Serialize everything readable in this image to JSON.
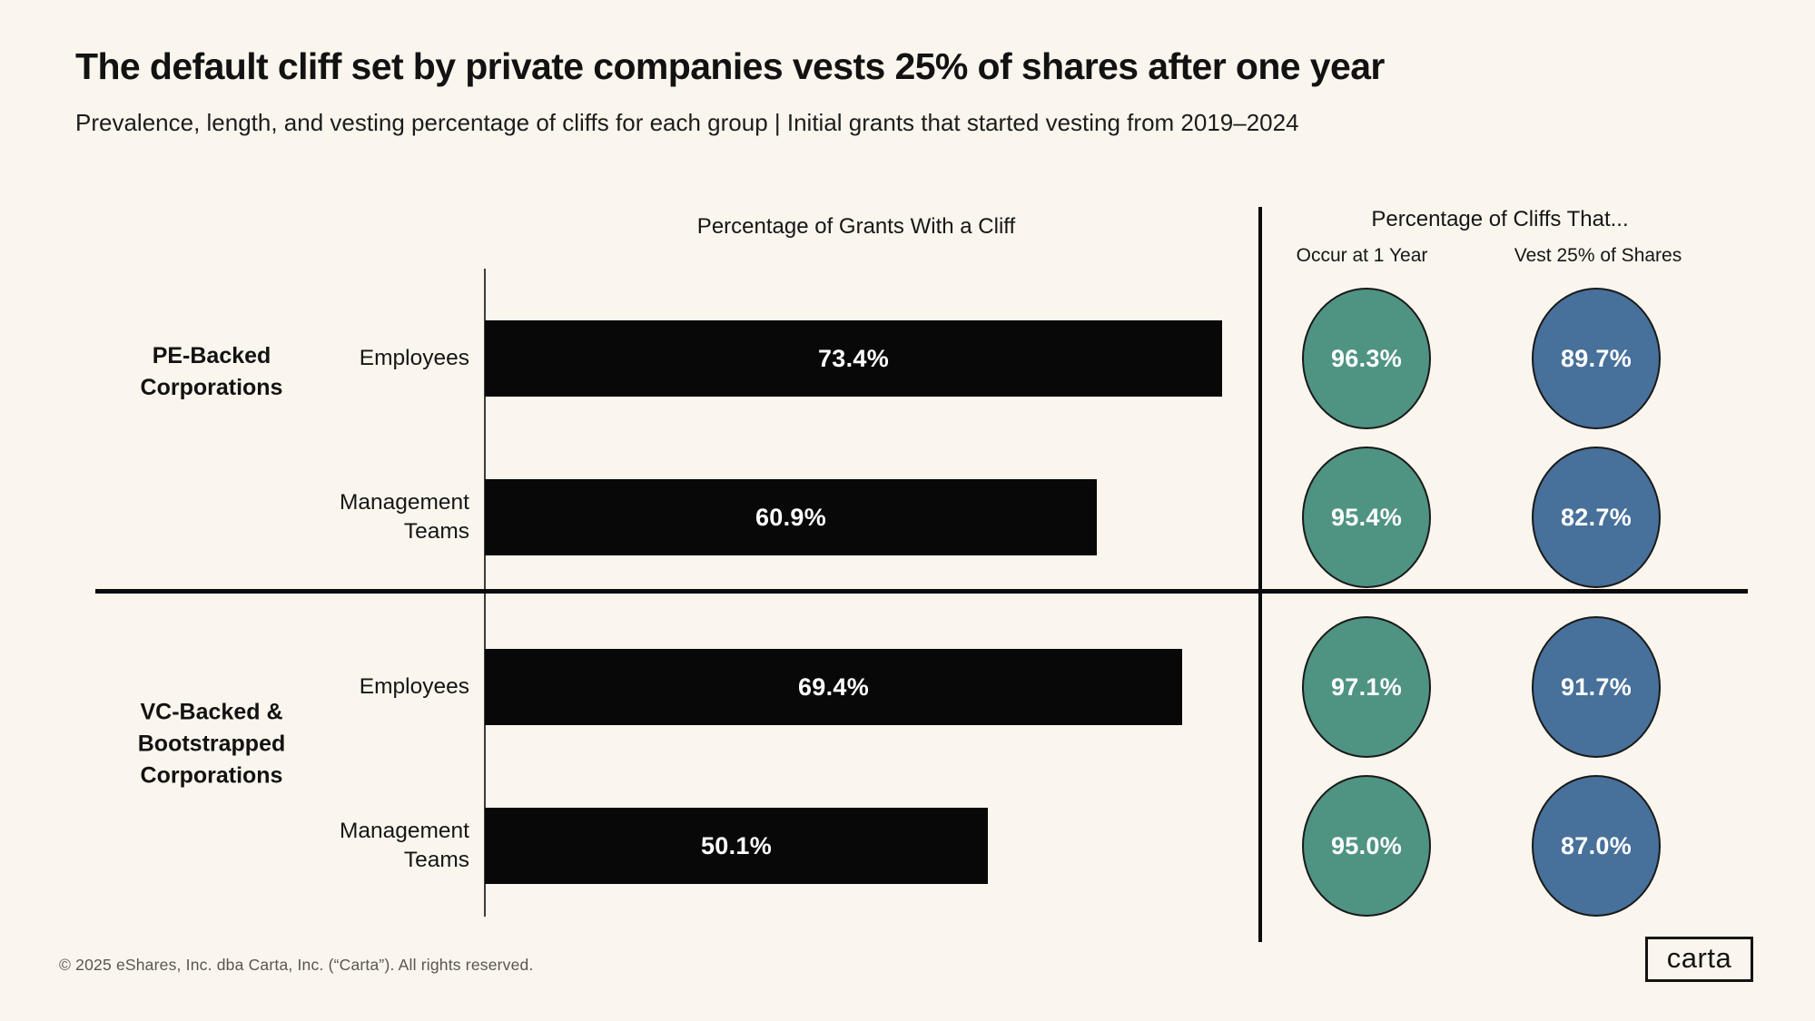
{
  "page": {
    "background_color": "#faf6ee",
    "title": "The default cliff set by private companies vests 25% of shares after one year",
    "subtitle": "Prevalence, length, and vesting percentage of cliffs for each group | Initial grants that started vesting from 2019–2024",
    "footer": "© 2025 eShares, Inc. dba Carta, Inc. (“Carta”). All rights reserved.",
    "logo_text": "carta"
  },
  "chart_data": {
    "type": "bar",
    "title": "The default cliff set by private companies vests 25% of shares after one year",
    "subtitle": "Prevalence, length, and vesting percentage of cliffs for each group | Initial grants that started vesting from 2019–2024",
    "bar_section": {
      "title": "Percentage of Grants With a Cliff",
      "xlim": [
        0,
        77
      ],
      "unit": "%",
      "grid": false
    },
    "circle_section": {
      "title": "Percentage of Cliffs That...",
      "columns": [
        "Occur at 1 Year",
        "Vest 25% of Shares"
      ]
    },
    "colors": {
      "bar": "#080808",
      "occur_circle": "#4f9383",
      "vest_circle": "#47709a",
      "circle_border": "#191919",
      "background": "#faf6ee"
    },
    "groups": [
      {
        "label": "PE-Backed\nCorporations"
      },
      {
        "label": "VC-Backed &\nBootstrapped\nCorporations"
      }
    ],
    "rows": [
      {
        "group": 0,
        "label": "Employees",
        "grants_with_cliff": 73.4,
        "grants_display": "73.4%",
        "occur_at_1_year": 96.3,
        "occur_display": "96.3%",
        "vest_25_of_shares": 89.7,
        "vest_display": "89.7%"
      },
      {
        "group": 0,
        "label": "Management\nTeams",
        "grants_with_cliff": 60.9,
        "grants_display": "60.9%",
        "occur_at_1_year": 95.4,
        "occur_display": "95.4%",
        "vest_25_of_shares": 82.7,
        "vest_display": "82.7%"
      },
      {
        "group": 1,
        "label": "Employees",
        "grants_with_cliff": 69.4,
        "grants_display": "69.4%",
        "occur_at_1_year": 97.1,
        "occur_display": "97.1%",
        "vest_25_of_shares": 91.7,
        "vest_display": "91.7%"
      },
      {
        "group": 1,
        "label": "Management\nTeams",
        "grants_with_cliff": 50.1,
        "grants_display": "50.1%",
        "occur_at_1_year": 95.0,
        "occur_display": "95.0%",
        "vest_25_of_shares": 87.0,
        "vest_display": "87.0%"
      }
    ]
  }
}
